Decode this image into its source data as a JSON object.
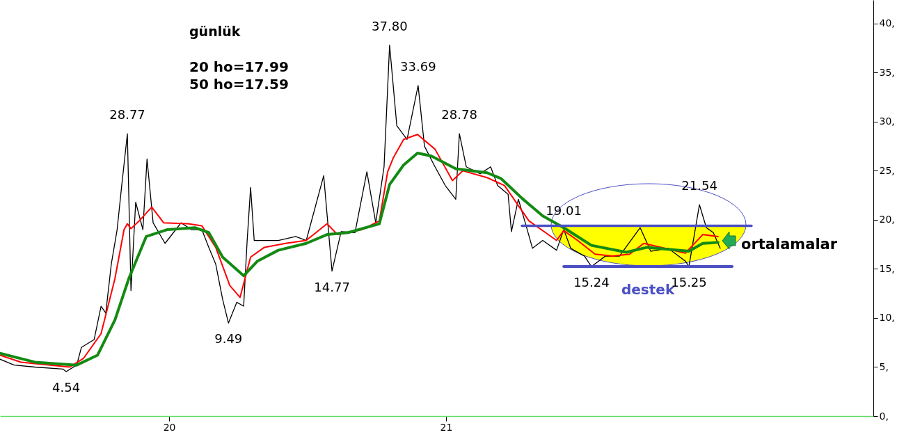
{
  "chart_data": {
    "type": "line",
    "title": "günlük",
    "xlim": [
      2019.389,
      2022.543
    ],
    "xticks": [
      {
        "value": 2020,
        "label": "20"
      },
      {
        "value": 2021,
        "label": "21"
      }
    ],
    "ylim": [
      0,
      42.4
    ],
    "yticks": [
      {
        "value": 0,
        "label": "0,"
      },
      {
        "value": 5,
        "label": "5,"
      },
      {
        "value": 10,
        "label": "10,"
      },
      {
        "value": 15,
        "label": "15,"
      },
      {
        "value": 20,
        "label": "20,"
      },
      {
        "value": 25,
        "label": "25,"
      },
      {
        "value": 30,
        "label": "30,"
      },
      {
        "value": 35,
        "label": "35,"
      },
      {
        "value": 40,
        "label": "40,"
      }
    ],
    "grid": false,
    "marker": "none",
    "line_style": "solid",
    "series": [
      {
        "color": "#000000",
        "x": [
          2019.389,
          2019.44,
          2019.515,
          2019.616,
          2019.628,
          2019.666,
          2019.683,
          2019.729,
          2019.754,
          2019.771,
          2019.791,
          2019.812,
          2019.829,
          2019.849,
          2019.862,
          2019.879,
          2019.905,
          2019.92,
          2019.942,
          2019.985,
          2020.043,
          2020.08,
          2020.118,
          2020.143,
          2020.168,
          2020.193,
          2020.214,
          2020.244,
          2020.269,
          2020.281,
          2020.294,
          2020.307,
          2020.344,
          2020.394,
          2020.457,
          2020.495,
          2020.558,
          2020.588,
          2020.621,
          2020.671,
          2020.714,
          2020.746,
          2020.776,
          2020.796,
          2020.822,
          2020.859,
          2020.899,
          2020.922,
          2020.96,
          2020.997,
          2021.035,
          2021.048,
          2021.073,
          2021.123,
          2021.161,
          2021.186,
          2021.224,
          2021.236,
          2021.261,
          2021.286,
          2021.312,
          2021.349,
          2021.399,
          2021.425,
          2021.45,
          2021.5,
          2021.525,
          2021.575,
          2021.626,
          2021.701,
          2021.739,
          2021.802,
          2021.864,
          2021.877,
          2021.915,
          2021.94,
          2021.965,
          2021.99
        ],
        "values": [
          5.8,
          5.2,
          5.0,
          4.8,
          4.54,
          5.2,
          7.0,
          7.8,
          11.2,
          10.5,
          15.5,
          19.0,
          23.6,
          28.77,
          12.8,
          21.8,
          19.0,
          26.2,
          19.7,
          17.6,
          19.7,
          19.0,
          19.0,
          17.2,
          15.5,
          11.9,
          9.49,
          11.6,
          11.2,
          17.6,
          23.3,
          17.9,
          17.9,
          17.9,
          18.3,
          17.9,
          24.5,
          14.77,
          18.8,
          18.7,
          24.9,
          19.7,
          25.4,
          37.8,
          29.6,
          28.2,
          33.69,
          27.5,
          25.4,
          23.5,
          22.1,
          28.78,
          25.4,
          24.7,
          25.4,
          23.5,
          22.6,
          18.8,
          22.1,
          19.7,
          17.1,
          17.9,
          16.9,
          19.01,
          17.1,
          16.3,
          15.24,
          16.3,
          16.3,
          19.2,
          16.8,
          17.1,
          15.8,
          15.25,
          21.54,
          19.2,
          18.7,
          17.1
        ]
      },
      {
        "color": "#ff0000",
        "x": [
          2019.389,
          2019.465,
          2019.641,
          2019.691,
          2019.754,
          2019.804,
          2019.837,
          2019.849,
          2019.862,
          2019.892,
          2019.937,
          2019.98,
          2020.068,
          2020.118,
          2020.168,
          2020.219,
          2020.256,
          2020.294,
          2020.344,
          2020.42,
          2020.495,
          2020.57,
          2020.608,
          2020.696,
          2020.759,
          2020.789,
          2020.809,
          2020.847,
          2020.897,
          2020.96,
          2021.023,
          2021.06,
          2021.148,
          2021.211,
          2021.299,
          2021.399,
          2021.425,
          2021.475,
          2021.538,
          2021.601,
          2021.663,
          2021.714,
          2021.776,
          2021.864,
          2021.927,
          2021.982
        ],
        "values": [
          6.2,
          5.5,
          5.0,
          5.9,
          8.4,
          14.0,
          19.0,
          19.6,
          19.1,
          19.9,
          21.3,
          19.7,
          19.6,
          19.4,
          17.2,
          13.3,
          12.1,
          16.2,
          17.2,
          17.6,
          17.9,
          19.6,
          18.5,
          19.0,
          19.9,
          24.9,
          26.3,
          28.2,
          28.7,
          27.2,
          24.0,
          25.0,
          24.3,
          23.5,
          19.9,
          17.9,
          18.9,
          17.9,
          16.5,
          16.3,
          16.5,
          17.6,
          17.2,
          16.6,
          18.5,
          18.3
        ]
      },
      {
        "color": "#138a13",
        "x": [
          2019.389,
          2019.515,
          2019.666,
          2019.741,
          2019.804,
          2019.854,
          2019.917,
          2019.992,
          2020.093,
          2020.143,
          2020.193,
          2020.269,
          2020.319,
          2020.394,
          2020.495,
          2020.57,
          2020.646,
          2020.759,
          2020.796,
          2020.847,
          2020.897,
          2020.947,
          2021.035,
          2021.148,
          2021.199,
          2021.274,
          2021.349,
          2021.425,
          2021.525,
          2021.651,
          2021.726,
          2021.802,
          2021.877,
          2021.927,
          2021.982
        ],
        "values": [
          6.4,
          5.5,
          5.2,
          6.2,
          9.8,
          14.0,
          18.3,
          19.0,
          19.2,
          18.7,
          16.2,
          14.3,
          15.8,
          16.9,
          17.6,
          18.5,
          18.7,
          19.6,
          23.6,
          25.6,
          26.8,
          26.5,
          25.2,
          24.8,
          24.2,
          22.2,
          20.4,
          19.2,
          17.4,
          16.7,
          17.2,
          17.0,
          16.8,
          17.6,
          17.7
        ]
      },
      {
        "type": "line",
        "color": "#4b4fc4",
        "x": [
          2021.274,
          2022.103
        ],
        "values": [
          19.4,
          19.4
        ]
      },
      {
        "type": "line",
        "name": "destek",
        "color": "#4b4fc4",
        "x": [
          2021.425,
          2022.033
        ],
        "values": [
          15.25,
          15.25
        ]
      }
    ],
    "annotations": [
      "20 ho=17.99",
      "50 ho=17.59",
      "ortalamalar",
      {
        "text": "28.77",
        "x": 2019.849,
        "y": 28.77
      },
      {
        "text": "4.54",
        "x": 2019.628,
        "y": 4.54
      },
      {
        "text": "9.49",
        "x": 2020.214,
        "y": 9.49
      },
      {
        "text": "14.77",
        "x": 2020.588,
        "y": 14.77
      },
      {
        "text": "37.80",
        "x": 2020.796,
        "y": 37.8
      },
      {
        "text": "33.69",
        "x": 2020.899,
        "y": 33.69
      },
      {
        "text": "28.78",
        "x": 2021.048,
        "y": 28.78
      },
      {
        "text": "19.01",
        "x": 2021.425,
        "y": 19.01
      },
      {
        "text": "15.24",
        "x": 2021.525,
        "y": 15.24
      },
      {
        "text": "21.54",
        "x": 2021.915,
        "y": 21.54
      },
      {
        "text": "15.25",
        "x": 2021.877,
        "y": 15.25
      }
    ]
  }
}
